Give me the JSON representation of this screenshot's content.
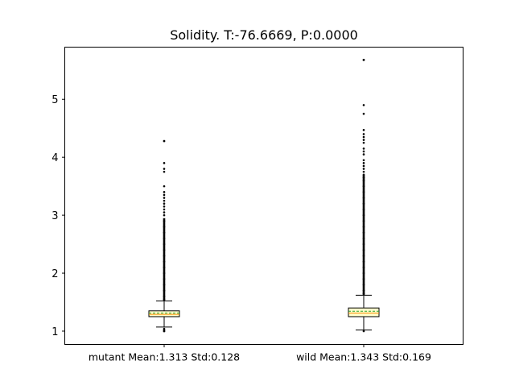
{
  "chart_data": {
    "type": "box",
    "title": "Solidity. T:-76.6669, P:0.0000",
    "xlabel": "",
    "ylabel": "",
    "categories": [
      "mutant Mean:1.313 Std:0.128",
      "wild Mean:1.343 Std:0.169"
    ],
    "ylim": [
      0.77,
      5.9
    ],
    "yticks": [
      1,
      2,
      3,
      4,
      5
    ],
    "grid": false,
    "legend": "none",
    "series": [
      {
        "category": "mutant Mean:1.313 Std:0.128",
        "whisker_low": 1.07,
        "q1": 1.25,
        "median": 1.29,
        "mean": 1.313,
        "q3": 1.35,
        "whisker_high": 1.52,
        "min": 1.0,
        "max": 4.28,
        "outliers_high": [
          1.55,
          1.6,
          1.7,
          1.8,
          1.9,
          2.0,
          2.1,
          2.2,
          2.3,
          2.4,
          2.5,
          2.6,
          2.7,
          2.8,
          2.9,
          3.0,
          3.05,
          3.1,
          3.15,
          3.2,
          3.25,
          3.3,
          3.35,
          3.4,
          3.5,
          3.75,
          3.8,
          3.9,
          4.28
        ],
        "outliers_low": [
          1.0,
          1.02,
          1.04
        ]
      },
      {
        "category": "wild Mean:1.343 Std:0.169",
        "whisker_low": 1.02,
        "q1": 1.25,
        "median": 1.31,
        "mean": 1.343,
        "q3": 1.4,
        "whisker_high": 1.62,
        "min": 1.0,
        "max": 5.68,
        "outliers_high": [
          1.65,
          1.7,
          1.8,
          1.9,
          2.0,
          2.1,
          2.2,
          2.3,
          2.4,
          2.5,
          2.6,
          2.7,
          2.8,
          2.9,
          3.0,
          3.1,
          3.2,
          3.3,
          3.4,
          3.5,
          3.6,
          3.65,
          3.7,
          3.75,
          3.8,
          3.85,
          3.9,
          3.95,
          4.05,
          4.1,
          4.15,
          4.25,
          4.3,
          4.35,
          4.4,
          4.47,
          4.75,
          4.9,
          5.68
        ],
        "outliers_low": []
      }
    ],
    "colors": {
      "box_fill": "#ffffcc",
      "median": "#ff8c00",
      "mean": "#2ca02c",
      "line": "#000000"
    }
  }
}
